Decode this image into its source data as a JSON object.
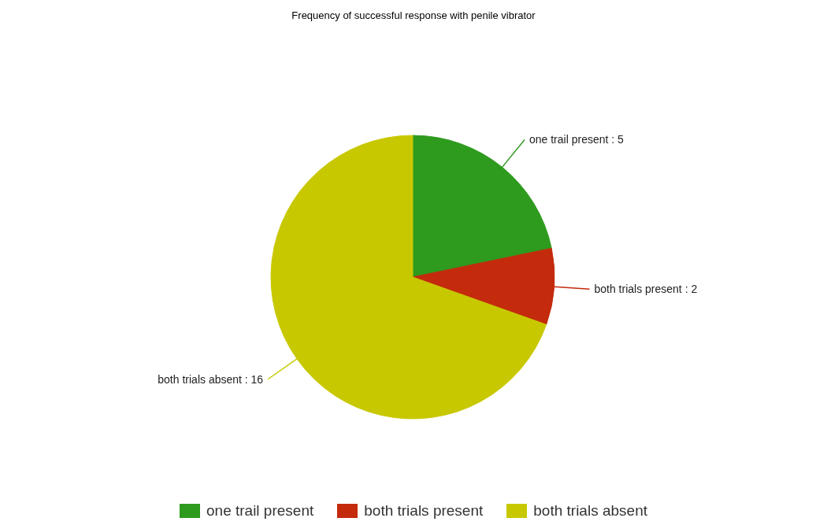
{
  "chart_data": {
    "type": "pie",
    "title": "Frequency of successful response with penile vibrator",
    "categories": [
      "one trail present",
      "both trials present",
      "both trials absent"
    ],
    "values": [
      5,
      2,
      16
    ],
    "colors": [
      "#2e9a1e",
      "#c42a0c",
      "#c8c800"
    ],
    "value_labels": [
      "one trail present : 5",
      "both trials present : 2",
      "both trials absent : 16"
    ],
    "legend": "bottom"
  }
}
